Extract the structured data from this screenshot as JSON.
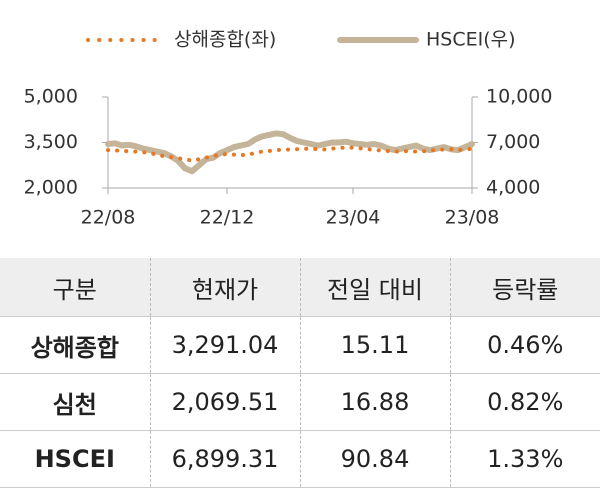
{
  "chart_data": {
    "type": "line",
    "categories": [
      "22/08",
      null,
      null,
      null,
      null,
      null,
      null,
      null,
      null,
      null,
      null,
      null,
      null,
      null,
      null,
      null,
      null,
      "22/12",
      null,
      null,
      null,
      null,
      null,
      null,
      null,
      null,
      null,
      null,
      null,
      null,
      null,
      null,
      null,
      null,
      null,
      "23/04",
      null,
      null,
      null,
      null,
      null,
      null,
      null,
      null,
      null,
      null,
      null,
      null,
      null,
      null,
      null,
      null,
      "23/08"
    ],
    "series": [
      {
        "name": "상해종합(좌)",
        "color": "#E87722",
        "style": "dotted",
        "values": [
          3250,
          3240,
          3230,
          3210,
          3200,
          3180,
          3150,
          3100,
          3050,
          3020,
          2980,
          2950,
          2900,
          2950,
          3000,
          3050,
          3100,
          3120,
          3100,
          3080,
          3100,
          3150,
          3200,
          3220,
          3250,
          3260,
          3270,
          3280,
          3290,
          3300,
          3280,
          3270,
          3300,
          3320,
          3340,
          3330,
          3310,
          3280,
          3260,
          3240,
          3220,
          3200,
          3210,
          3220,
          3200,
          3210,
          3240,
          3260,
          3270,
          3280,
          3250,
          3270,
          3291
        ]
      },
      {
        "name": "HSCEI(우)",
        "color": "#C4B49A",
        "style": "solid",
        "axis": "y2",
        "values": [
          6900,
          6950,
          6800,
          6850,
          6750,
          6600,
          6500,
          6400,
          6300,
          6100,
          5800,
          5300,
          5100,
          5500,
          5900,
          6000,
          6300,
          6500,
          6700,
          6800,
          6900,
          7200,
          7400,
          7500,
          7600,
          7550,
          7300,
          7100,
          7000,
          6900,
          6800,
          6900,
          7000,
          7000,
          7050,
          6950,
          6900,
          6850,
          6900,
          6800,
          6600,
          6500,
          6600,
          6700,
          6800,
          6600,
          6500,
          6600,
          6700,
          6550,
          6500,
          6700,
          6899
        ]
      }
    ],
    "ylim": [
      2000,
      5000
    ],
    "yticks": [
      {
        "value": 2000,
        "label": "2,000"
      },
      {
        "value": 3500,
        "label": "3,500"
      },
      {
        "value": 5000,
        "label": "5,000"
      }
    ],
    "y2lim": [
      4000,
      10000
    ],
    "y2ticks": [
      {
        "value": 4000,
        "label": "4,000"
      },
      {
        "value": 7000,
        "label": "7,000"
      },
      {
        "value": 10000,
        "label": "10,000"
      }
    ],
    "grid": false,
    "legend": "top"
  },
  "table": {
    "header": [
      "구분",
      "현재가",
      "전일 대비",
      "등락률"
    ],
    "rows": [
      [
        "상해종합",
        "3,291.04",
        "15.11",
        "0.46%"
      ],
      [
        "심천",
        "2,069.51",
        "16.88",
        "0.82%"
      ],
      [
        "HSCEI",
        "6,899.31",
        "90.84",
        "1.33%"
      ]
    ]
  }
}
